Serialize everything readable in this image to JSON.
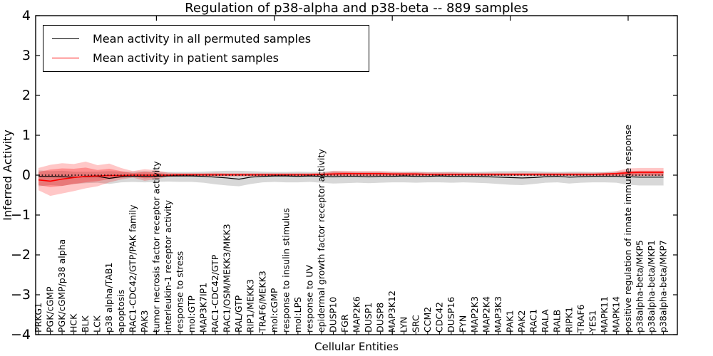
{
  "chart_data": {
    "type": "line",
    "title": "Regulation of p38-alpha and p38-beta -- 889 samples",
    "xlabel": "Cellular Entities",
    "ylabel": "Inferred Activity",
    "ylim": [
      -4,
      4
    ],
    "yticks": [
      -4,
      -3,
      -2,
      -1,
      0,
      1,
      2,
      3,
      4
    ],
    "ytick_labels": [
      "−4",
      "−3",
      "−2",
      "−1",
      "0",
      "1",
      "2",
      "3",
      "4"
    ],
    "x_major_tick_indices": [
      10,
      20,
      30,
      40,
      50
    ],
    "grid": false,
    "legend": {
      "position": "upper-left",
      "entries": [
        {
          "label": "Mean activity in all permuted samples",
          "color": "#000000"
        },
        {
          "label": "Mean activity in patient samples",
          "color": "#ff0000"
        }
      ]
    },
    "reference_line": {
      "y": 0,
      "style": "dotted",
      "color": "#000000"
    },
    "categories": [
      "PRKG1",
      "PGK/cGMP",
      "PGK/cGMP/p38 alpha",
      "HCK",
      "BLK",
      "LCK",
      "p38 alpha/TAB1",
      "apoptosis",
      "RAC1-CDC42/GTP/PAK family",
      "PAK3",
      "tumor necrosis factor receptor activity",
      "interleukin-1 receptor activity",
      "response to stress",
      "mol:GTP",
      "MAP3K7IP1",
      "RAC1-CDC42/GTP",
      "RAC1/OSM/MEKK3/MKK3",
      "RAL/GTP",
      "RIP1/MEKK3",
      "TRAF6/MEKK3",
      "mol:cGMP",
      "response to insulin stimulus",
      "mol:LPS",
      "response to UV",
      "epidermal growth factor receptor activity",
      "DUSP10",
      "FGR",
      "MAP2K6",
      "DUSP1",
      "DUSP8",
      "MAP3K12",
      "LYN",
      "SRC",
      "CCM2",
      "CDC42",
      "DUSP16",
      "FYN",
      "MAP2K3",
      "MAP2K4",
      "MAP3K3",
      "PAK1",
      "PAK2",
      "RAC1",
      "RALA",
      "RALB",
      "RIPK1",
      "TRAF6",
      "YES1",
      "MAPK11",
      "MAPK14",
      "positive regulation of innate immune response",
      "p38alpha-beta/MKP5",
      "p38alpha-beta/MKP1",
      "p38alpha-beta/MKP7"
    ],
    "series": [
      {
        "name": "Mean activity in all permuted samples",
        "color": "#000000",
        "line_width": 1.2,
        "values": [
          -0.03,
          -0.03,
          -0.04,
          -0.05,
          -0.04,
          -0.03,
          -0.08,
          -0.04,
          -0.03,
          -0.03,
          -0.03,
          -0.02,
          -0.02,
          -0.02,
          -0.03,
          -0.05,
          -0.07,
          -0.1,
          -0.05,
          -0.03,
          -0.02,
          -0.02,
          -0.03,
          -0.02,
          -0.03,
          -0.04,
          -0.03,
          -0.03,
          -0.04,
          -0.03,
          -0.03,
          -0.02,
          -0.03,
          -0.03,
          -0.02,
          -0.03,
          -0.03,
          -0.03,
          -0.04,
          -0.05,
          -0.06,
          -0.07,
          -0.06,
          -0.04,
          -0.03,
          -0.05,
          -0.04,
          -0.03,
          -0.03,
          -0.03,
          -0.04,
          -0.05,
          -0.05,
          -0.05
        ],
        "bands": [
          {
            "name": "permuted-range-band",
            "color": "#999999",
            "opacity": 0.38,
            "lo": [
              -0.28,
              -0.25,
              -0.27,
              -0.22,
              -0.2,
              -0.19,
              -0.22,
              -0.18,
              -0.17,
              -0.18,
              -0.17,
              -0.16,
              -0.17,
              -0.17,
              -0.19,
              -0.23,
              -0.26,
              -0.28,
              -0.22,
              -0.18,
              -0.17,
              -0.18,
              -0.18,
              -0.17,
              -0.19,
              -0.21,
              -0.2,
              -0.19,
              -0.2,
              -0.19,
              -0.18,
              -0.18,
              -0.19,
              -0.18,
              -0.18,
              -0.19,
              -0.18,
              -0.19,
              -0.2,
              -0.22,
              -0.24,
              -0.25,
              -0.22,
              -0.19,
              -0.18,
              -0.21,
              -0.19,
              -0.18,
              -0.18,
              -0.19,
              -0.24,
              -0.26,
              -0.26,
              -0.26
            ],
            "hi": [
              0.12,
              0.1,
              0.11,
              0.09,
              0.09,
              0.09,
              0.1,
              0.09,
              0.09,
              0.1,
              0.09,
              0.08,
              0.08,
              0.08,
              0.09,
              0.1,
              0.11,
              0.11,
              0.1,
              0.09,
              0.08,
              0.08,
              0.09,
              0.08,
              0.09,
              0.1,
              0.09,
              0.09,
              0.09,
              0.09,
              0.08,
              0.08,
              0.09,
              0.08,
              0.08,
              0.09,
              0.08,
              0.08,
              0.09,
              0.1,
              0.1,
              0.11,
              0.1,
              0.09,
              0.08,
              0.09,
              0.09,
              0.08,
              0.08,
              0.09,
              0.1,
              0.1,
              0.1,
              0.1
            ]
          }
        ]
      },
      {
        "name": "Mean activity in patient samples",
        "color": "#ff0000",
        "line_width": 1.6,
        "values": [
          -0.12,
          -0.15,
          -0.1,
          -0.06,
          -0.03,
          -0.02,
          -0.01,
          -0.01,
          0.0,
          0.0,
          0.0,
          0.0,
          0.01,
          0.01,
          0.01,
          0.01,
          0.01,
          0.01,
          0.01,
          0.01,
          0.01,
          0.01,
          0.01,
          0.01,
          0.02,
          0.03,
          0.04,
          0.04,
          0.04,
          0.04,
          0.03,
          0.03,
          0.03,
          0.02,
          0.02,
          0.02,
          0.02,
          0.02,
          0.02,
          0.02,
          0.02,
          0.02,
          0.02,
          0.02,
          0.02,
          0.02,
          0.02,
          0.02,
          0.03,
          0.04,
          0.06,
          0.07,
          0.07,
          0.07
        ],
        "bands": [
          {
            "name": "patient-range-outer-band",
            "color": "#ff0000",
            "opacity": 0.22,
            "lo": [
              -0.38,
              -0.52,
              -0.46,
              -0.4,
              -0.33,
              -0.28,
              -0.18,
              -0.11,
              -0.06,
              -0.14,
              -0.1,
              -0.04,
              -0.03,
              -0.03,
              -0.03,
              -0.03,
              -0.03,
              -0.03,
              -0.03,
              -0.03,
              -0.03,
              -0.03,
              -0.03,
              -0.03,
              -0.02,
              -0.02,
              -0.02,
              -0.02,
              -0.02,
              -0.02,
              -0.02,
              -0.02,
              -0.02,
              -0.02,
              -0.02,
              -0.02,
              -0.02,
              -0.02,
              -0.02,
              -0.02,
              -0.02,
              -0.02,
              -0.02,
              -0.02,
              -0.02,
              -0.02,
              -0.02,
              -0.02,
              -0.02,
              -0.02,
              -0.02,
              -0.02,
              -0.02,
              -0.02
            ],
            "hi": [
              0.18,
              0.26,
              0.3,
              0.28,
              0.34,
              0.25,
              0.29,
              0.18,
              0.1,
              0.15,
              0.12,
              0.06,
              0.05,
              0.05,
              0.05,
              0.06,
              0.05,
              0.05,
              0.05,
              0.05,
              0.05,
              0.05,
              0.05,
              0.05,
              0.06,
              0.11,
              0.11,
              0.1,
              0.1,
              0.1,
              0.09,
              0.08,
              0.08,
              0.07,
              0.07,
              0.07,
              0.06,
              0.06,
              0.06,
              0.06,
              0.06,
              0.06,
              0.06,
              0.06,
              0.06,
              0.06,
              0.06,
              0.06,
              0.07,
              0.1,
              0.17,
              0.18,
              0.18,
              0.18
            ]
          },
          {
            "name": "patient-range-inner-band",
            "color": "#ff0000",
            "opacity": 0.28,
            "lo": [
              -0.25,
              -0.3,
              -0.27,
              -0.22,
              -0.18,
              -0.15,
              -0.1,
              -0.06,
              -0.03,
              -0.08,
              -0.06,
              -0.02,
              -0.02,
              -0.02,
              -0.02,
              -0.02,
              -0.02,
              -0.02,
              -0.02,
              -0.02,
              -0.02,
              -0.02,
              -0.02,
              -0.02,
              -0.01,
              -0.01,
              -0.01,
              -0.01,
              -0.01,
              -0.01,
              -0.01,
              -0.01,
              -0.01,
              -0.01,
              -0.01,
              -0.01,
              -0.01,
              -0.01,
              -0.01,
              -0.01,
              -0.01,
              -0.01,
              -0.01,
              -0.01,
              -0.01,
              -0.01,
              -0.01,
              -0.01,
              -0.01,
              -0.01,
              -0.01,
              -0.01,
              -0.01,
              -0.01
            ],
            "hi": [
              0.08,
              0.14,
              0.17,
              0.16,
              0.19,
              0.13,
              0.16,
              0.1,
              0.05,
              0.08,
              0.06,
              0.03,
              0.03,
              0.03,
              0.03,
              0.03,
              0.03,
              0.03,
              0.03,
              0.03,
              0.03,
              0.03,
              0.03,
              0.03,
              0.04,
              0.07,
              0.07,
              0.06,
              0.06,
              0.06,
              0.05,
              0.05,
              0.05,
              0.04,
              0.04,
              0.04,
              0.04,
              0.04,
              0.04,
              0.04,
              0.04,
              0.04,
              0.04,
              0.04,
              0.04,
              0.04,
              0.04,
              0.04,
              0.04,
              0.06,
              0.1,
              0.11,
              0.11,
              0.11
            ]
          }
        ]
      }
    ]
  }
}
